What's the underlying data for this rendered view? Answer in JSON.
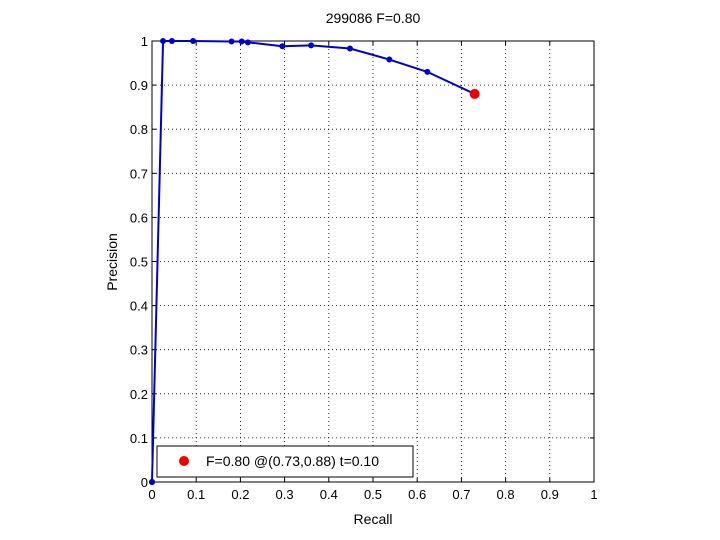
{
  "chart_data": {
    "type": "line",
    "title": "299086 F=0.80",
    "xlabel": "Recall",
    "ylabel": "Precision",
    "xlim": [
      0,
      1
    ],
    "ylim": [
      0,
      1
    ],
    "xticks": [
      "0",
      "0.1",
      "0.2",
      "0.3",
      "0.4",
      "0.5",
      "0.6",
      "0.7",
      "0.8",
      "0.9",
      "1"
    ],
    "yticks": [
      "0",
      "0.1",
      "0.2",
      "0.3",
      "0.4",
      "0.5",
      "0.6",
      "0.7",
      "0.8",
      "0.9",
      "1"
    ],
    "grid": true,
    "series": [
      {
        "color": "#0000cc",
        "x": [
          0.0,
          0.0,
          0.025,
          0.045,
          0.093,
          0.18,
          0.203,
          0.217,
          0.295,
          0.36,
          0.448,
          0.537,
          0.623,
          0.73
        ],
        "y": [
          0.0,
          0.0,
          1.0,
          1.0,
          1.0,
          0.999,
          0.999,
          0.997,
          0.988,
          0.99,
          0.983,
          0.958,
          0.93,
          0.88
        ]
      }
    ],
    "highlight": {
      "x": 0.73,
      "y": 0.88,
      "color": "#ee0000"
    },
    "legend": {
      "position": "bottom-left",
      "text": "F=0.80 @(0.73,0.88) t=0.10"
    }
  }
}
